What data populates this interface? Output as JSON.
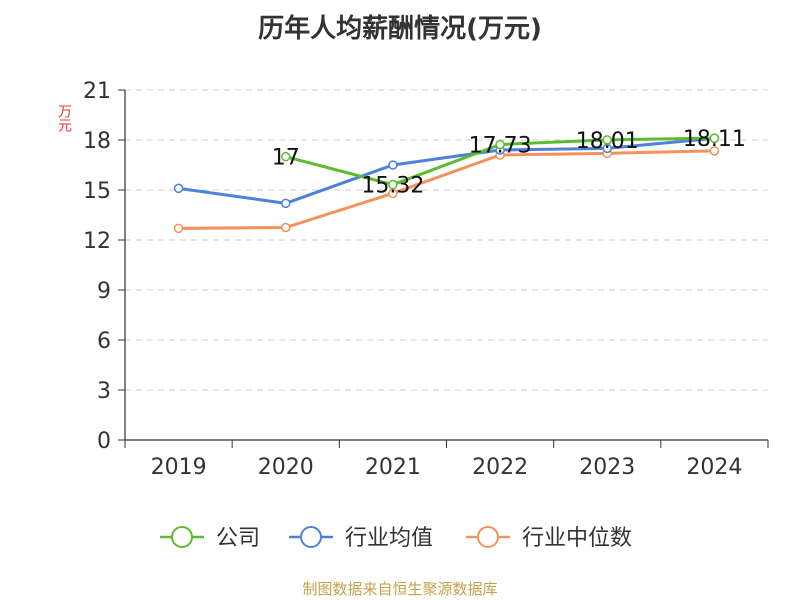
{
  "title": "历年人均薪酬情况(万元)",
  "unit_label": "万元",
  "footer": "制图数据来自恒生聚源数据库",
  "chart_data": {
    "type": "line",
    "categories": [
      "2019",
      "2020",
      "2021",
      "2022",
      "2023",
      "2024"
    ],
    "ylim": [
      0,
      21
    ],
    "yticks": [
      0,
      3,
      6,
      9,
      12,
      15,
      18,
      21
    ],
    "grid": true,
    "legend_position": "bottom",
    "series": [
      {
        "name": "公司",
        "color": "#5dbb2f",
        "values": [
          null,
          17,
          15.32,
          17.73,
          18.01,
          18.11
        ],
        "data_labels": [
          null,
          "17",
          "15.32",
          "17.73",
          "18.01",
          "18.11"
        ]
      },
      {
        "name": "行业均值",
        "color": "#4f81d6",
        "values": [
          15.1,
          14.2,
          16.5,
          17.4,
          17.5,
          18.1
        ]
      },
      {
        "name": "行业中位数",
        "color": "#f5915a",
        "values": [
          12.7,
          12.75,
          14.8,
          17.1,
          17.2,
          17.35
        ]
      }
    ]
  }
}
